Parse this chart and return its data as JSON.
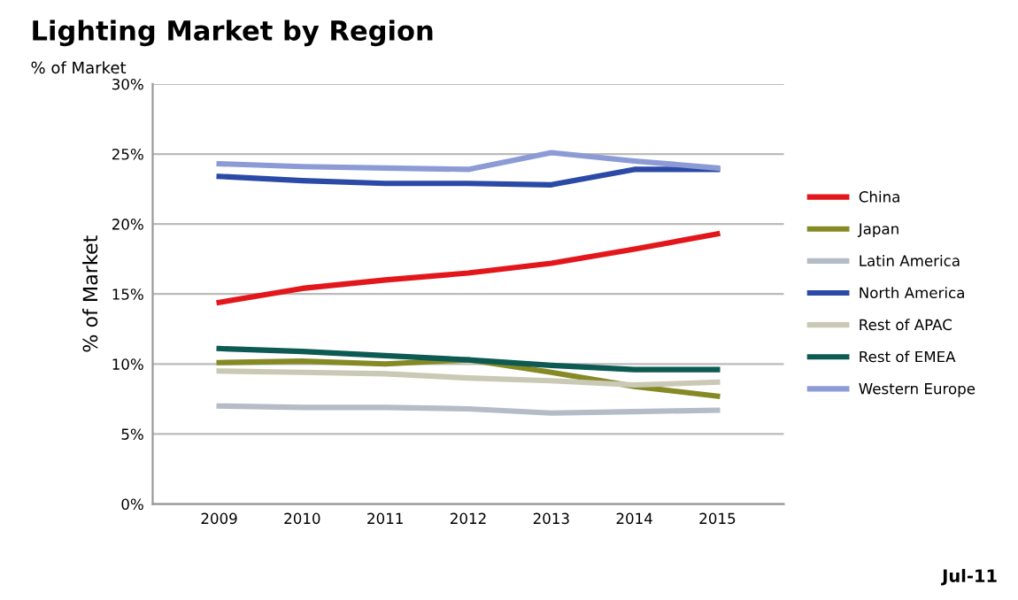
{
  "chart_data": {
    "type": "line",
    "title": "Lighting Market by Region",
    "subtitle": "% of Market",
    "ylabel": "% of Market",
    "categories": [
      "2009",
      "2010",
      "2011",
      "2012",
      "2013",
      "2014",
      "2015"
    ],
    "series": [
      {
        "name": "China",
        "color": "#e3171b",
        "values": [
          14.4,
          15.4,
          16.0,
          16.5,
          17.2,
          18.2,
          19.3
        ]
      },
      {
        "name": "Japan",
        "color": "#858a25",
        "values": [
          10.1,
          10.2,
          10.0,
          10.3,
          9.4,
          8.4,
          7.7
        ]
      },
      {
        "name": "Latin America",
        "color": "#b5bcc6",
        "values": [
          7.0,
          6.9,
          6.9,
          6.8,
          6.5,
          6.6,
          6.7
        ]
      },
      {
        "name": "North America",
        "color": "#2b4aa6",
        "values": [
          23.4,
          23.1,
          22.9,
          22.9,
          22.8,
          23.9,
          23.9
        ]
      },
      {
        "name": "Rest of APAC",
        "color": "#c9c9b6",
        "values": [
          9.5,
          9.4,
          9.3,
          9.0,
          8.8,
          8.5,
          8.7
        ]
      },
      {
        "name": "Rest of EMEA",
        "color": "#0c5a52",
        "values": [
          11.1,
          10.9,
          10.6,
          10.3,
          9.9,
          9.6,
          9.6
        ]
      },
      {
        "name": "Western Europe",
        "color": "#8c9bd6",
        "values": [
          24.3,
          24.1,
          24.0,
          23.9,
          25.1,
          24.5,
          24.0
        ]
      }
    ],
    "ylim": [
      0,
      30
    ],
    "yticks": [
      {
        "value": 0,
        "label": "0%"
      },
      {
        "value": 5,
        "label": "5%"
      },
      {
        "value": 10,
        "label": "10%"
      },
      {
        "value": 15,
        "label": "15%"
      },
      {
        "value": 20,
        "label": "20%"
      },
      {
        "value": 25,
        "label": "25%"
      },
      {
        "value": 30,
        "label": "30%"
      }
    ],
    "grid": "y",
    "legend": "right",
    "annotations": [
      "Jul-11"
    ]
  }
}
